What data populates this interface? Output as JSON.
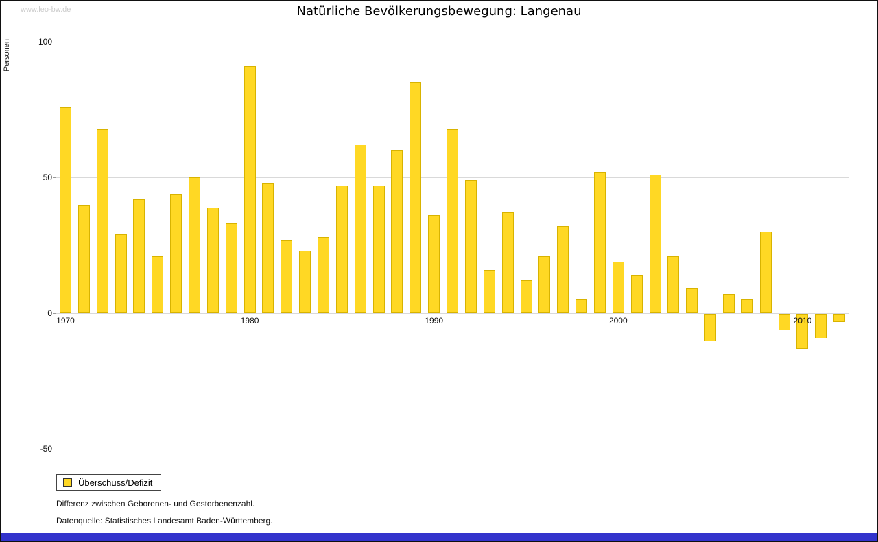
{
  "watermark": "www.leo-bw.de",
  "title": "Natürliche Bevölkerungsbewegung: Langenau",
  "legend": {
    "label": "Überschuss/Defizit"
  },
  "footnotes": [
    "Differenz zwischen Geborenen- und Gestorbenenzahl.",
    "Datenquelle: Statistisches Landesamt Baden-Württemberg."
  ],
  "colors": {
    "bar": "#FFD824",
    "bar_border": "#D8B300",
    "grid": "#d9d9d9",
    "footer_strip": "#3333cc"
  },
  "chart_data": {
    "type": "bar",
    "title": "Natürliche Bevölkerungsbewegung: Langenau",
    "xlabel": "",
    "ylabel": "Personen",
    "x": [
      1970,
      1971,
      1972,
      1973,
      1974,
      1975,
      1976,
      1977,
      1978,
      1979,
      1980,
      1981,
      1982,
      1983,
      1984,
      1985,
      1986,
      1987,
      1988,
      1989,
      1990,
      1991,
      1992,
      1993,
      1994,
      1995,
      1996,
      1997,
      1998,
      1999,
      2000,
      2001,
      2002,
      2003,
      2004,
      2005,
      2006,
      2007,
      2008,
      2009,
      2010,
      2011,
      2012
    ],
    "values": [
      76,
      40,
      68,
      29,
      42,
      21,
      44,
      50,
      39,
      33,
      91,
      48,
      27,
      23,
      28,
      47,
      62,
      47,
      60,
      85,
      36,
      68,
      49,
      16,
      37,
      12,
      21,
      32,
      5,
      52,
      19,
      14,
      51,
      21,
      9,
      -10,
      7,
      5,
      30,
      -6,
      -13,
      -9,
      -3
    ],
    "x_ticks": [
      1970,
      1980,
      1990,
      2000,
      2010
    ],
    "y_ticks": [
      100,
      50,
      0,
      -50
    ],
    "ylim": [
      -55,
      105
    ],
    "grid": true,
    "legend_position": "bottom-left",
    "series_name": "Überschuss/Defizit"
  }
}
